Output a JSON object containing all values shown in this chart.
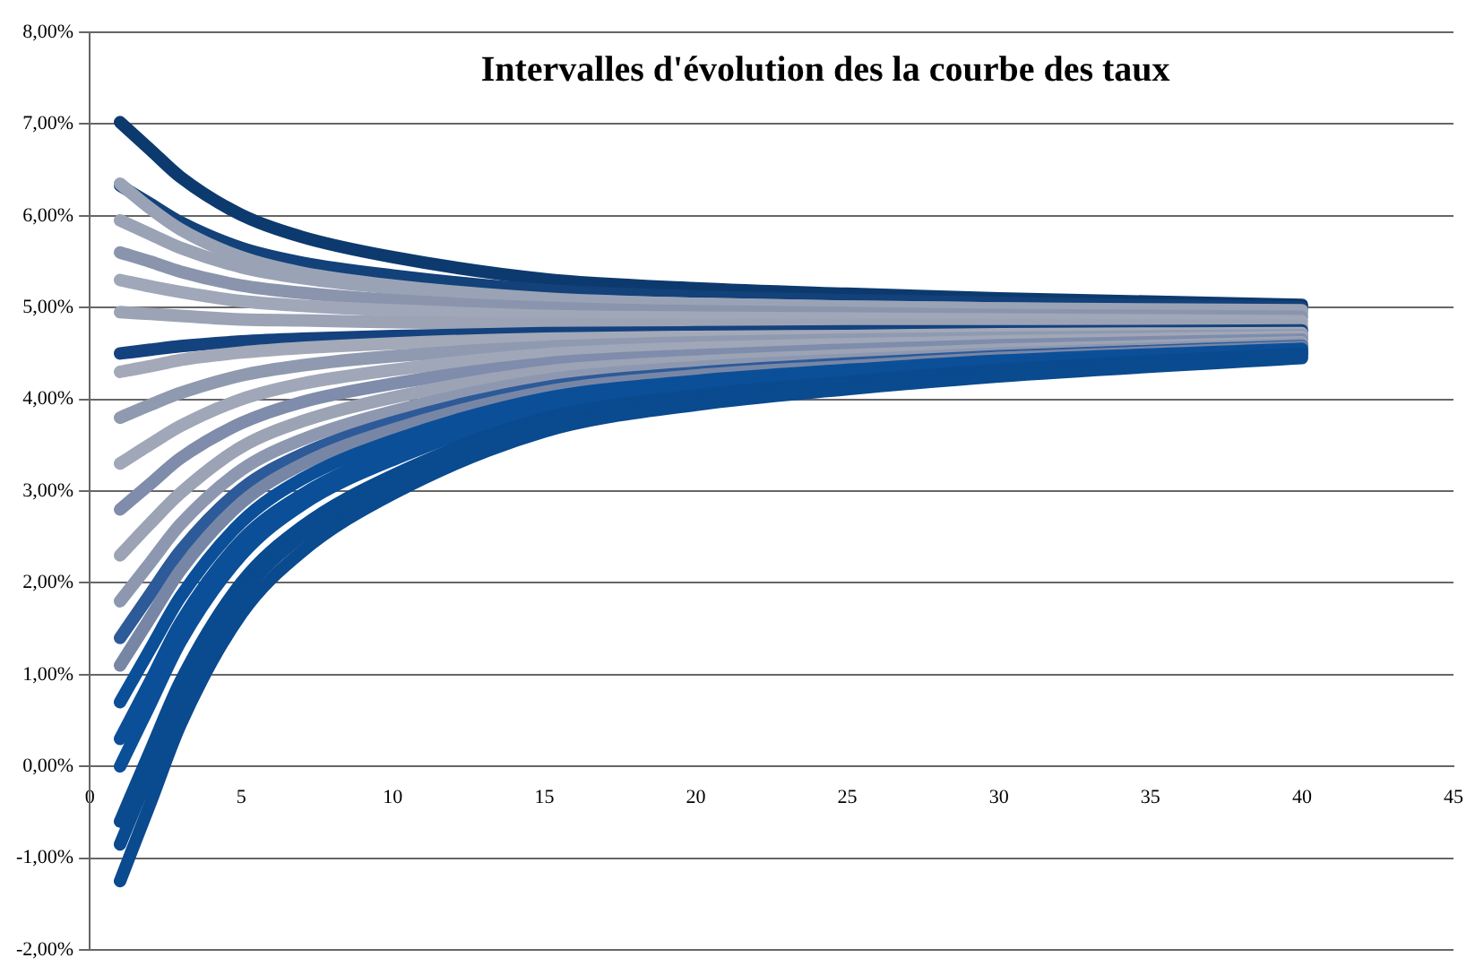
{
  "chart_data": {
    "type": "line",
    "title": "Intervalles d'évolution des la courbe des taux",
    "x": [
      1,
      2,
      3,
      5,
      7,
      10,
      15,
      20,
      25,
      30,
      40
    ],
    "xlim": [
      0,
      45
    ],
    "xticks": [
      0,
      5,
      10,
      15,
      20,
      25,
      30,
      35,
      40,
      45
    ],
    "ylim": [
      -2,
      8
    ],
    "yticks": [
      {
        "value": -2,
        "label": "-2,00%"
      },
      {
        "value": -1,
        "label": "-1,00%"
      },
      {
        "value": 0,
        "label": "0,00%"
      },
      {
        "value": 1,
        "label": "1,00%"
      },
      {
        "value": 2,
        "label": "2,00%"
      },
      {
        "value": 3,
        "label": "3,00%"
      },
      {
        "value": 4,
        "label": "4,00%"
      },
      {
        "value": 5,
        "label": "5,00%"
      },
      {
        "value": 6,
        "label": "6,00%"
      },
      {
        "value": 7,
        "label": "7,00%"
      },
      {
        "value": 8,
        "label": "8,00%"
      }
    ],
    "grid": "y",
    "legend": false,
    "marker": "none",
    "line_style": "solid",
    "series": [
      {
        "color": "#0d3a6e",
        "values": [
          7.02,
          6.72,
          6.42,
          6.01,
          5.77,
          5.55,
          5.31,
          5.21,
          5.15,
          5.1,
          5.03
        ]
      },
      {
        "color": "#13417a",
        "values": [
          6.33,
          6.13,
          5.93,
          5.65,
          5.49,
          5.35,
          5.19,
          5.12,
          5.08,
          5.05,
          5.0
        ]
      },
      {
        "color": "#9aa3b5",
        "values": [
          6.35,
          6.08,
          5.85,
          5.55,
          5.38,
          5.24,
          5.1,
          5.04,
          5.01,
          4.99,
          4.97
        ]
      },
      {
        "color": "#9aa3b5",
        "values": [
          5.95,
          5.8,
          5.65,
          5.44,
          5.32,
          5.21,
          5.09,
          5.04,
          5.01,
          4.99,
          4.95
        ]
      },
      {
        "color": "#8a95ad",
        "values": [
          5.6,
          5.5,
          5.39,
          5.24,
          5.16,
          5.08,
          5.0,
          4.96,
          4.94,
          4.92,
          4.9
        ]
      },
      {
        "color": "#a0a7b8",
        "values": [
          5.3,
          5.23,
          5.17,
          5.07,
          5.02,
          4.97,
          4.91,
          4.89,
          4.88,
          4.87,
          4.85
        ]
      },
      {
        "color": "#9ba3b5",
        "values": [
          4.95,
          4.93,
          4.91,
          4.87,
          4.86,
          4.84,
          4.82,
          4.81,
          4.81,
          4.81,
          4.8
        ]
      },
      {
        "color": "#14427e",
        "values": [
          4.5,
          4.54,
          4.58,
          4.63,
          4.66,
          4.69,
          4.72,
          4.73,
          4.74,
          4.74,
          4.75
        ]
      },
      {
        "color": "#a3a9b8",
        "values": [
          4.3,
          4.36,
          4.43,
          4.51,
          4.56,
          4.61,
          4.66,
          4.68,
          4.69,
          4.71,
          4.72
        ]
      },
      {
        "color": "#8f9ab0",
        "values": [
          3.8,
          3.94,
          4.07,
          4.26,
          4.37,
          4.47,
          4.57,
          4.62,
          4.65,
          4.67,
          4.7
        ]
      },
      {
        "color": "#a0a7b8",
        "values": [
          3.3,
          3.51,
          3.71,
          4.0,
          4.17,
          4.32,
          4.49,
          4.56,
          4.6,
          4.63,
          4.68
        ]
      },
      {
        "color": "#7f8cab",
        "values": [
          2.8,
          3.08,
          3.36,
          3.74,
          3.97,
          4.17,
          4.39,
          4.48,
          4.54,
          4.59,
          4.65
        ]
      },
      {
        "color": "#9ba3b5",
        "values": [
          2.3,
          2.65,
          2.98,
          3.48,
          3.76,
          4.02,
          4.3,
          4.41,
          4.48,
          4.54,
          4.62
        ]
      },
      {
        "color": "#8d98b0",
        "values": [
          1.8,
          2.22,
          2.64,
          3.23,
          3.56,
          3.87,
          4.21,
          4.35,
          4.43,
          4.5,
          4.6
        ]
      },
      {
        "color": "#2d5a98",
        "values": [
          1.4,
          1.88,
          2.35,
          3.02,
          3.4,
          3.75,
          4.13,
          4.29,
          4.39,
          4.47,
          4.58
        ]
      },
      {
        "color": "#7886a6",
        "values": [
          1.1,
          1.62,
          2.14,
          2.87,
          3.29,
          3.67,
          4.08,
          4.26,
          4.36,
          4.45,
          4.57
        ]
      },
      {
        "color": "#0b4f98",
        "values": [
          0.7,
          1.28,
          1.85,
          2.66,
          3.13,
          3.55,
          4.01,
          4.2,
          4.32,
          4.42,
          4.55
        ]
      },
      {
        "color": "#0b4f98",
        "values": [
          0.3,
          0.93,
          1.57,
          2.46,
          2.96,
          3.43,
          3.94,
          4.15,
          4.28,
          4.38,
          4.53
        ]
      },
      {
        "color": "#0b4f98",
        "values": [
          0.0,
          0.68,
          1.36,
          2.3,
          2.85,
          3.34,
          3.89,
          4.11,
          4.25,
          4.36,
          4.52
        ]
      },
      {
        "color": "#0a4a8f",
        "values": [
          -0.6,
          0.17,
          0.93,
          2.0,
          2.61,
          3.17,
          3.79,
          4.04,
          4.19,
          4.32,
          4.5
        ]
      },
      {
        "color": "#0a4a8f",
        "values": [
          -0.85,
          -0.05,
          0.75,
          1.87,
          2.51,
          3.09,
          3.73,
          4.0,
          4.16,
          4.29,
          4.48
        ]
      },
      {
        "color": "#0a4a8f",
        "values": [
          -1.25,
          -0.4,
          0.46,
          1.66,
          2.34,
          2.97,
          3.65,
          3.94,
          4.11,
          4.25,
          4.45
        ]
      }
    ]
  }
}
